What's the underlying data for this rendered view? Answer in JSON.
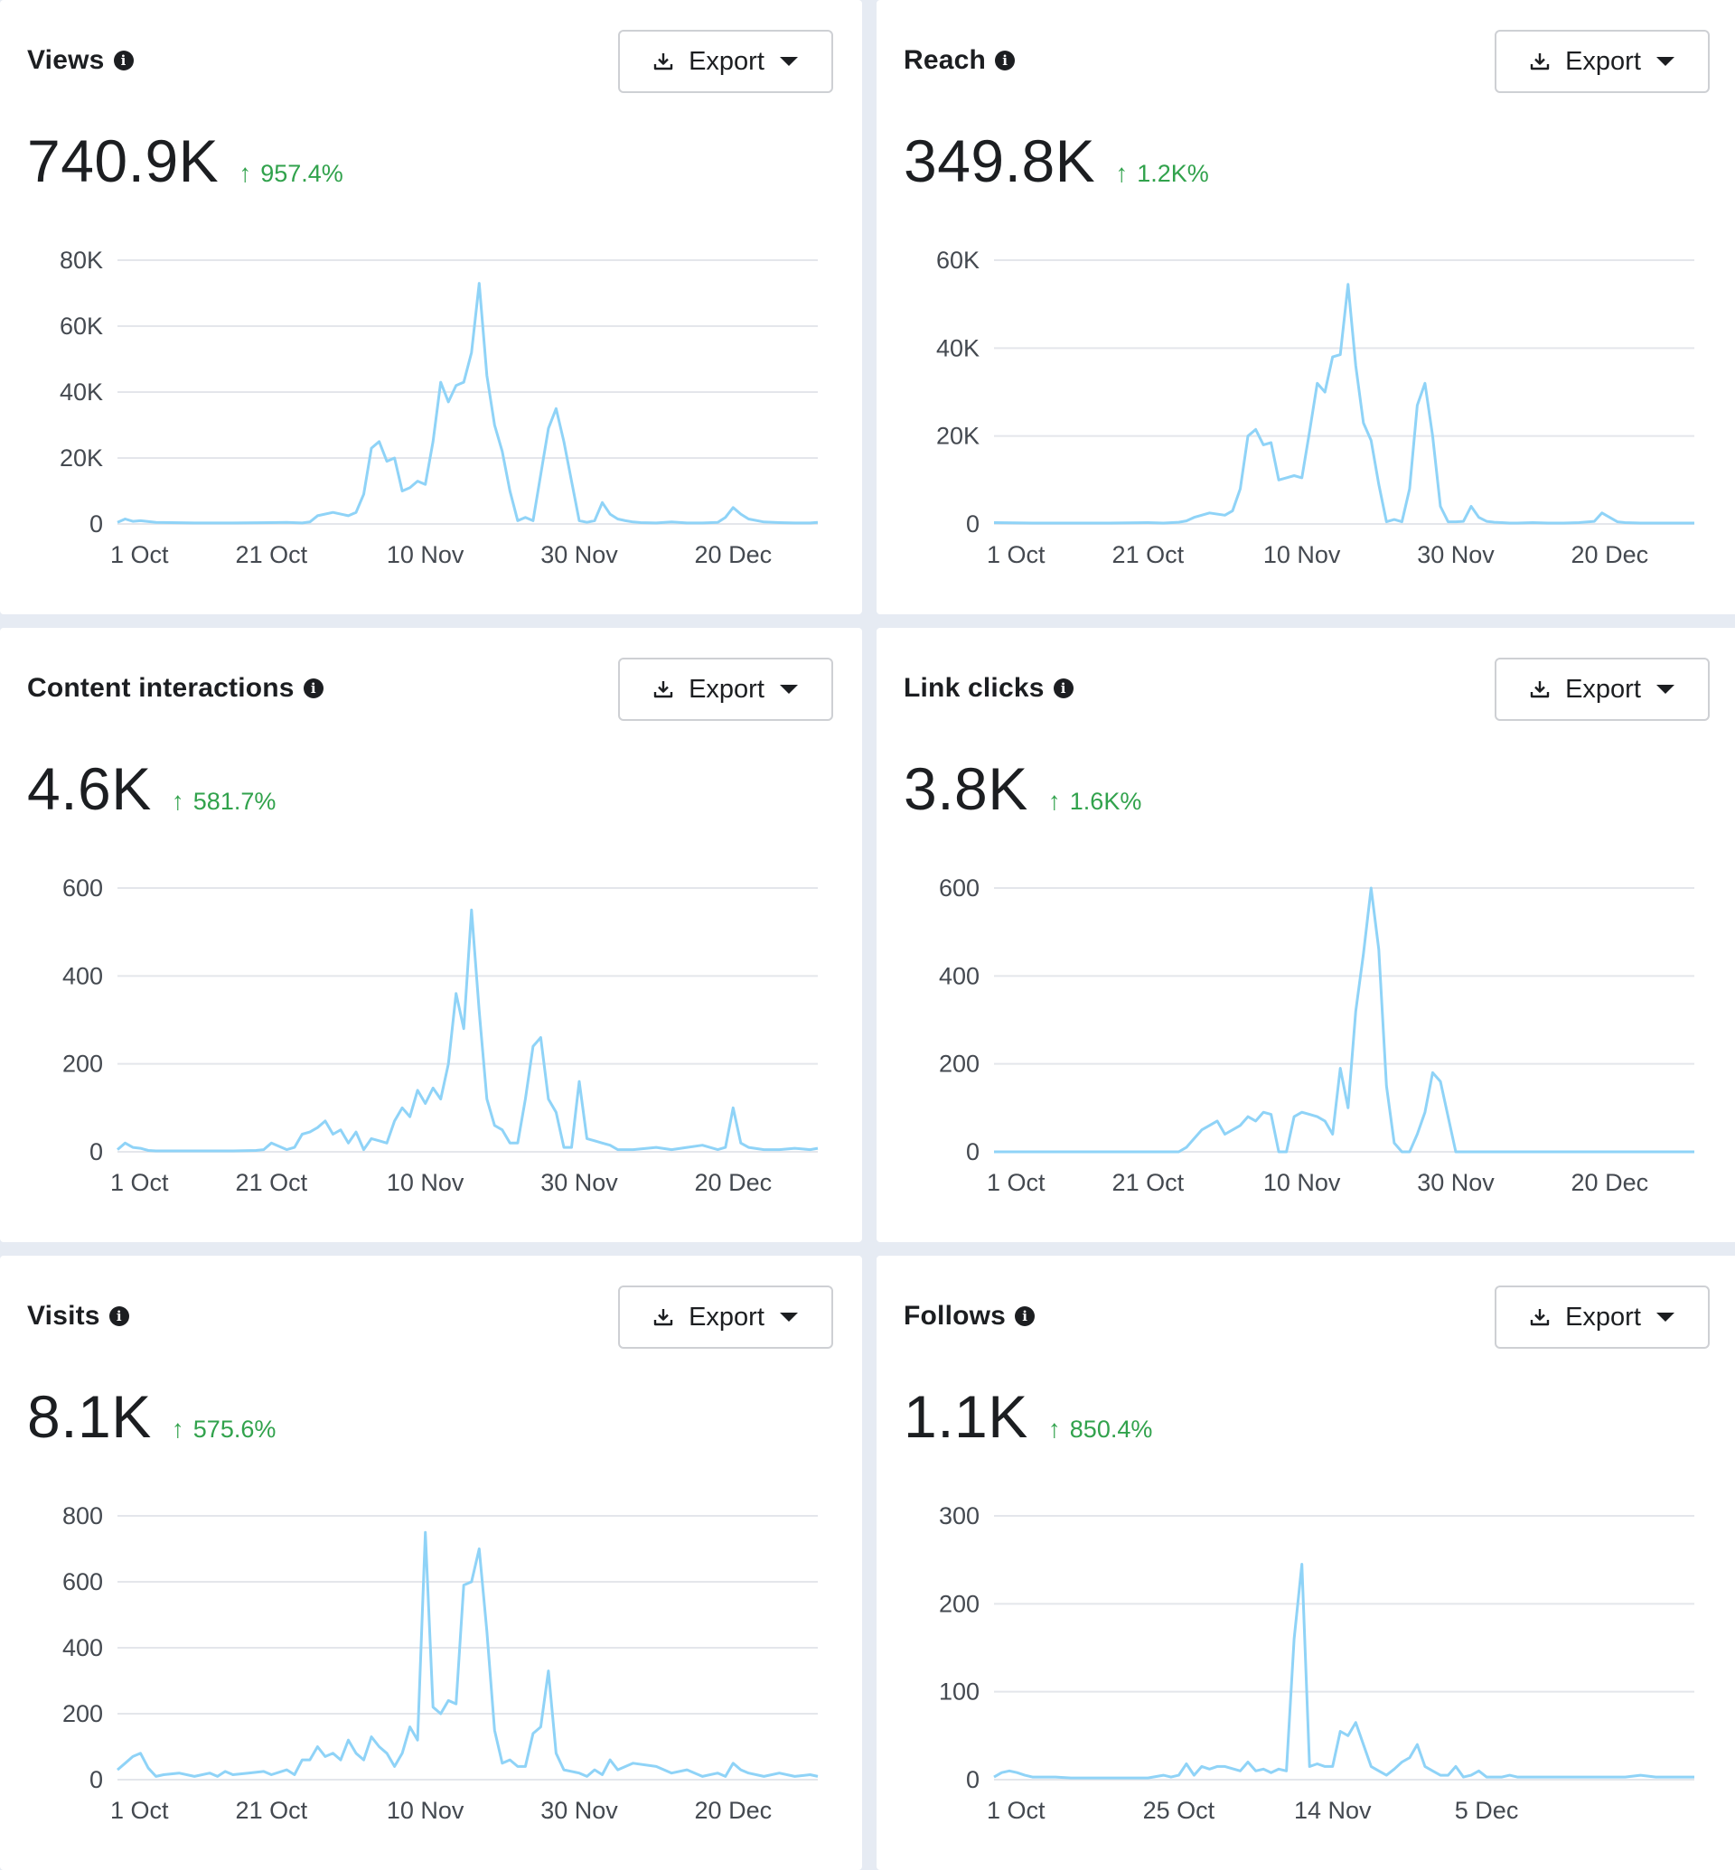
{
  "export_label": "Export",
  "colors": {
    "line": "#8fd3f7",
    "positive": "#31a24c",
    "grid": "#e4e6eb"
  },
  "icons": {
    "info": "info-icon",
    "download": "download-icon",
    "caret": "caret-down-icon"
  },
  "chart_data": [
    {
      "type": "line",
      "title": "Views",
      "value": "740.9K",
      "change": "957.4%",
      "ylim": [
        0,
        80000
      ],
      "yticks": [
        0,
        20000,
        40000,
        60000,
        80000
      ],
      "ytick_labels": [
        "0",
        "20K",
        "40K",
        "60K",
        "80K"
      ],
      "xlim": [
        0,
        91
      ],
      "xticks": [
        0,
        20,
        40,
        60,
        80
      ],
      "xtick_labels": [
        "1 Oct",
        "21 Oct",
        "10 Nov",
        "30 Nov",
        "20 Dec"
      ],
      "series": [
        {
          "x": [
            0,
            1,
            2,
            3,
            5,
            10,
            15,
            20,
            22,
            24,
            25,
            26,
            28,
            30,
            31,
            32,
            33,
            34,
            35,
            36,
            37,
            38,
            39,
            40,
            41,
            42,
            43,
            44,
            45,
            46,
            47,
            48,
            49,
            50,
            51,
            52,
            53,
            54,
            55,
            56,
            57,
            58,
            59,
            60,
            61,
            62,
            63,
            64,
            65,
            66,
            67,
            68,
            70,
            72,
            74,
            76,
            78,
            79,
            80,
            81,
            82,
            84,
            86,
            88,
            90,
            91
          ],
          "y": [
            500,
            1500,
            800,
            1000,
            500,
            300,
            300,
            400,
            500,
            300,
            600,
            2500,
            3500,
            2500,
            3500,
            9000,
            23000,
            25000,
            19000,
            20000,
            10000,
            11000,
            13000,
            12000,
            25000,
            43000,
            37000,
            42000,
            43000,
            52000,
            73000,
            45000,
            30000,
            22000,
            10000,
            1000,
            2000,
            1000,
            15000,
            29000,
            35000,
            25000,
            13000,
            1000,
            500,
            1000,
            6500,
            3000,
            1500,
            1000,
            600,
            400,
            300,
            600,
            300,
            300,
            500,
            2000,
            5000,
            3000,
            1500,
            600,
            400,
            300,
            300,
            500
          ]
        }
      ]
    },
    {
      "type": "line",
      "title": "Reach",
      "value": "349.8K",
      "change": "1.2K%",
      "ylim": [
        0,
        60000
      ],
      "yticks": [
        0,
        20000,
        40000,
        60000
      ],
      "ytick_labels": [
        "0",
        "20K",
        "40K",
        "60K"
      ],
      "xlim": [
        0,
        91
      ],
      "xticks": [
        0,
        20,
        40,
        60,
        80
      ],
      "xtick_labels": [
        "1 Oct",
        "21 Oct",
        "10 Nov",
        "30 Nov",
        "20 Dec"
      ],
      "series": [
        {
          "x": [
            0,
            5,
            10,
            15,
            20,
            22,
            24,
            25,
            26,
            28,
            30,
            31,
            32,
            33,
            34,
            35,
            36,
            37,
            38,
            39,
            40,
            41,
            42,
            43,
            44,
            45,
            46,
            47,
            48,
            49,
            50,
            51,
            52,
            53,
            54,
            55,
            56,
            57,
            58,
            59,
            60,
            61,
            62,
            63,
            64,
            65,
            66,
            67,
            68,
            70,
            72,
            74,
            76,
            78,
            79,
            80,
            81,
            82,
            84,
            86,
            88,
            90,
            91
          ],
          "y": [
            300,
            200,
            200,
            200,
            300,
            200,
            400,
            700,
            1500,
            2500,
            2000,
            3000,
            8000,
            20000,
            21500,
            18000,
            18500,
            10000,
            10500,
            11000,
            10500,
            21000,
            32000,
            30000,
            38000,
            38500,
            54500,
            36000,
            23000,
            19000,
            9000,
            500,
            1000,
            500,
            8000,
            27000,
            32000,
            20000,
            4000,
            500,
            500,
            600,
            4000,
            1500,
            600,
            400,
            300,
            200,
            200,
            300,
            200,
            200,
            300,
            600,
            2500,
            1500,
            500,
            300,
            200,
            200,
            200,
            200,
            200
          ]
        }
      ]
    },
    {
      "type": "line",
      "title": "Content interactions",
      "value": "4.6K",
      "change": "581.7%",
      "ylim": [
        0,
        600
      ],
      "yticks": [
        0,
        200,
        400,
        600
      ],
      "ytick_labels": [
        "0",
        "200",
        "400",
        "600"
      ],
      "xlim": [
        0,
        91
      ],
      "xticks": [
        0,
        20,
        40,
        60,
        80
      ],
      "xtick_labels": [
        "1 Oct",
        "21 Oct",
        "10 Nov",
        "30 Nov",
        "20 Dec"
      ],
      "series": [
        {
          "x": [
            0,
            1,
            2,
            3,
            4,
            5,
            8,
            12,
            15,
            18,
            19,
            20,
            22,
            23,
            24,
            25,
            26,
            27,
            28,
            29,
            30,
            31,
            32,
            33,
            34,
            35,
            36,
            37,
            38,
            39,
            40,
            41,
            42,
            43,
            44,
            45,
            46,
            47,
            48,
            49,
            50,
            51,
            52,
            53,
            54,
            55,
            56,
            57,
            58,
            59,
            60,
            61,
            62,
            63,
            64,
            65,
            67,
            70,
            72,
            74,
            76,
            78,
            79,
            80,
            81,
            82,
            84,
            86,
            88,
            90,
            91
          ],
          "y": [
            5,
            20,
            10,
            8,
            3,
            2,
            2,
            2,
            2,
            3,
            5,
            20,
            5,
            10,
            40,
            45,
            55,
            70,
            40,
            50,
            20,
            45,
            5,
            30,
            25,
            20,
            70,
            100,
            80,
            140,
            110,
            145,
            120,
            200,
            360,
            280,
            550,
            320,
            120,
            60,
            50,
            20,
            20,
            120,
            240,
            260,
            120,
            90,
            10,
            10,
            160,
            30,
            25,
            20,
            15,
            5,
            5,
            10,
            5,
            10,
            15,
            5,
            10,
            100,
            20,
            10,
            5,
            5,
            8,
            5,
            8
          ]
        }
      ]
    },
    {
      "type": "line",
      "title": "Link clicks",
      "value": "3.8K",
      "change": "1.6K%",
      "ylim": [
        0,
        600
      ],
      "yticks": [
        0,
        200,
        400,
        600
      ],
      "ytick_labels": [
        "0",
        "200",
        "400",
        "600"
      ],
      "xlim": [
        0,
        91
      ],
      "xticks": [
        0,
        20,
        40,
        60,
        80
      ],
      "xtick_labels": [
        "1 Oct",
        "21 Oct",
        "10 Nov",
        "30 Nov",
        "20 Dec"
      ],
      "series": [
        {
          "x": [
            0,
            10,
            20,
            24,
            25,
            26,
            27,
            28,
            29,
            30,
            31,
            32,
            33,
            34,
            35,
            36,
            37,
            38,
            39,
            40,
            41,
            42,
            43,
            44,
            45,
            46,
            47,
            48,
            49,
            50,
            51,
            52,
            53,
            54,
            55,
            56,
            57,
            58,
            60,
            70,
            80,
            91
          ],
          "y": [
            0,
            0,
            0,
            0,
            10,
            30,
            50,
            60,
            70,
            40,
            50,
            60,
            80,
            70,
            90,
            85,
            0,
            0,
            80,
            90,
            85,
            80,
            70,
            40,
            190,
            100,
            320,
            450,
            600,
            460,
            150,
            20,
            0,
            0,
            40,
            90,
            180,
            160,
            0,
            0,
            0,
            0
          ]
        }
      ]
    },
    {
      "type": "line",
      "title": "Visits",
      "value": "8.1K",
      "change": "575.6%",
      "ylim": [
        0,
        800
      ],
      "yticks": [
        0,
        200,
        400,
        600,
        800
      ],
      "ytick_labels": [
        "0",
        "200",
        "400",
        "600",
        "800"
      ],
      "xlim": [
        0,
        91
      ],
      "xticks": [
        0,
        20,
        40,
        60,
        80
      ],
      "xtick_labels": [
        "1 Oct",
        "21 Oct",
        "10 Nov",
        "30 Nov",
        "20 Dec"
      ],
      "series": [
        {
          "x": [
            0,
            1,
            2,
            3,
            4,
            5,
            6,
            8,
            10,
            12,
            13,
            14,
            15,
            17,
            19,
            20,
            22,
            23,
            24,
            25,
            26,
            27,
            28,
            29,
            30,
            31,
            32,
            33,
            34,
            35,
            36,
            37,
            38,
            39,
            40,
            41,
            42,
            43,
            44,
            45,
            46,
            47,
            48,
            49,
            50,
            51,
            52,
            53,
            54,
            55,
            56,
            57,
            58,
            60,
            61,
            62,
            63,
            64,
            65,
            67,
            70,
            72,
            74,
            76,
            78,
            79,
            80,
            81,
            82,
            84,
            86,
            88,
            90,
            91
          ],
          "y": [
            30,
            50,
            70,
            80,
            35,
            10,
            15,
            20,
            10,
            20,
            10,
            25,
            15,
            20,
            25,
            15,
            30,
            15,
            60,
            60,
            100,
            70,
            80,
            60,
            120,
            80,
            60,
            130,
            100,
            80,
            40,
            80,
            160,
            120,
            750,
            220,
            200,
            240,
            230,
            590,
            600,
            700,
            450,
            150,
            50,
            60,
            40,
            40,
            140,
            160,
            330,
            80,
            30,
            20,
            10,
            30,
            15,
            60,
            30,
            50,
            40,
            20,
            30,
            10,
            20,
            10,
            50,
            30,
            20,
            10,
            20,
            10,
            15,
            10
          ]
        }
      ]
    },
    {
      "type": "line",
      "title": "Follows",
      "value": "1.1K",
      "change": "850.4%",
      "ylim": [
        0,
        300
      ],
      "yticks": [
        0,
        100,
        200,
        300
      ],
      "ytick_labels": [
        "0",
        "100",
        "200",
        "300"
      ],
      "xlim": [
        0,
        91
      ],
      "xticks": [
        0,
        24,
        44,
        64
      ],
      "xtick_labels": [
        "1 Oct",
        "25 Oct",
        "14 Nov",
        "5 Dec"
      ],
      "series": [
        {
          "x": [
            0,
            1,
            2,
            3,
            4,
            5,
            8,
            10,
            15,
            20,
            22,
            23,
            24,
            25,
            26,
            27,
            28,
            29,
            30,
            32,
            33,
            34,
            35,
            36,
            37,
            38,
            39,
            40,
            41,
            42,
            43,
            44,
            45,
            46,
            47,
            48,
            49,
            50,
            51,
            52,
            53,
            54,
            55,
            56,
            57,
            58,
            59,
            60,
            61,
            62,
            63,
            64,
            65,
            66,
            67,
            68,
            70,
            72,
            74,
            76,
            78,
            80,
            82,
            84,
            86,
            88,
            90,
            91
          ],
          "y": [
            3,
            8,
            10,
            8,
            5,
            3,
            3,
            2,
            2,
            2,
            5,
            3,
            5,
            18,
            5,
            15,
            12,
            15,
            15,
            10,
            20,
            10,
            12,
            8,
            12,
            10,
            160,
            245,
            15,
            18,
            15,
            15,
            55,
            50,
            65,
            40,
            15,
            10,
            5,
            12,
            20,
            25,
            40,
            15,
            10,
            5,
            5,
            15,
            3,
            5,
            10,
            3,
            3,
            3,
            5,
            3,
            3,
            3,
            3,
            3,
            3,
            3,
            3,
            5,
            3,
            3,
            3,
            3
          ]
        }
      ]
    }
  ]
}
